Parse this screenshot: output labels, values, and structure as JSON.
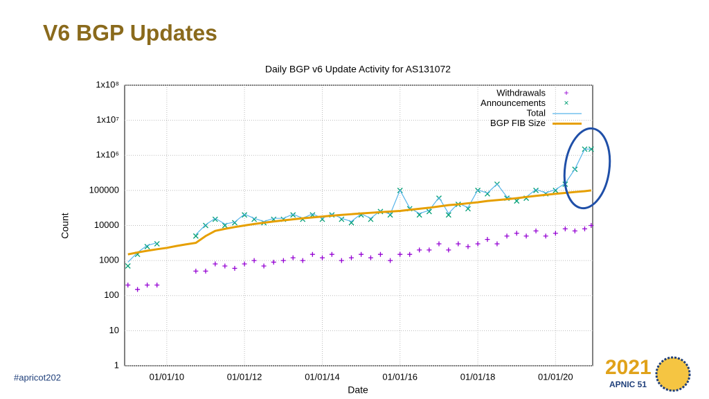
{
  "slide": {
    "title": "V6 BGP Updates",
    "footer_tag": "#apricot202",
    "logo_year": "2021",
    "logo_text": "APNIC 51"
  },
  "chart_data": {
    "type": "scatter",
    "title": "Daily BGP v6 Update Activity for AS131072",
    "x_label": "Date",
    "y_label": "Count",
    "log_scale_y": true,
    "grid": true,
    "legend_position": "top-right",
    "xlim": [
      "12/01/08",
      "12/15/20"
    ],
    "xticks": [
      "01/01/10",
      "01/01/12",
      "01/01/14",
      "01/01/16",
      "01/01/18",
      "01/01/20"
    ],
    "ylim": [
      1,
      100000000
    ],
    "yticks": [
      1,
      10,
      100,
      1000,
      10000,
      100000,
      {
        "value": 1000000,
        "label": "1x10⁶"
      },
      {
        "value": 10000000,
        "label": "1x10⁷"
      },
      {
        "value": 100000000,
        "label": "1x10⁸"
      }
    ],
    "x": [
      "01/01/09",
      "04/01/09",
      "07/01/09",
      "10/01/09",
      "01/01/10",
      "04/01/10",
      "07/01/10",
      "10/01/10",
      "01/01/11",
      "04/01/11",
      "07/01/11",
      "10/01/11",
      "01/01/12",
      "04/01/12",
      "07/01/12",
      "10/01/12",
      "01/01/13",
      "04/01/13",
      "07/01/13",
      "10/01/13",
      "01/01/14",
      "04/01/14",
      "07/01/14",
      "10/01/14",
      "01/01/15",
      "04/01/15",
      "07/01/15",
      "10/01/15",
      "01/01/16",
      "04/01/16",
      "07/01/16",
      "10/01/16",
      "01/01/17",
      "04/01/17",
      "07/01/17",
      "10/01/17",
      "01/01/18",
      "04/01/18",
      "07/01/18",
      "10/01/18",
      "01/01/19",
      "04/01/19",
      "07/01/19",
      "10/01/19",
      "01/01/20",
      "04/01/20",
      "07/01/20",
      "10/01/20",
      "12/01/20"
    ],
    "series": [
      {
        "name": "Withdrawals",
        "color": "#9400d3",
        "marker": "plus",
        "values": [
          200,
          150,
          200,
          200,
          null,
          null,
          null,
          500,
          500,
          800,
          700,
          600,
          800,
          1000,
          700,
          900,
          1000,
          1200,
          1000,
          1500,
          1200,
          1500,
          1000,
          1200,
          1500,
          1200,
          1500,
          1000,
          1500,
          1500,
          2000,
          2000,
          3000,
          2000,
          3000,
          2500,
          3000,
          4000,
          3000,
          5000,
          6000,
          5000,
          7000,
          5000,
          6000,
          8000,
          7000,
          8000,
          10000
        ]
      },
      {
        "name": "Announcements",
        "color": "#009e73",
        "marker": "cross",
        "values": [
          700,
          1500,
          2500,
          3000,
          null,
          null,
          null,
          5000,
          10000,
          15000,
          10000,
          12000,
          20000,
          15000,
          12000,
          15000,
          15000,
          20000,
          15000,
          20000,
          15000,
          20000,
          15000,
          12000,
          20000,
          15000,
          25000,
          20000,
          100000,
          30000,
          20000,
          25000,
          60000,
          20000,
          40000,
          30000,
          100000,
          80000,
          150000,
          60000,
          50000,
          60000,
          100000,
          80000,
          100000,
          150000,
          400000,
          1500000,
          1500000
        ]
      },
      {
        "name": "Total",
        "color": "#56b4e9",
        "marker": "line",
        "values": [
          900,
          1700,
          2700,
          3200,
          null,
          null,
          null,
          5500,
          10500,
          16000,
          11000,
          12500,
          21000,
          16000,
          13000,
          16000,
          16000,
          21000,
          16000,
          21500,
          16000,
          21500,
          16000,
          13000,
          21500,
          16000,
          26500,
          21000,
          101500,
          31500,
          22000,
          27000,
          63000,
          22000,
          43000,
          32500,
          103000,
          84000,
          153000,
          65000,
          56000,
          65000,
          107000,
          85000,
          106000,
          158000,
          407000,
          1508000,
          1510000
        ]
      },
      {
        "name": "BGP FIB Size",
        "color": "#e69f00",
        "marker": "line",
        "values": [
          1500,
          1700,
          1900,
          2100,
          2300,
          2600,
          2900,
          3200,
          5000,
          7000,
          8000,
          9000,
          10000,
          11000,
          12000,
          13000,
          14000,
          15000,
          16000,
          17000,
          18000,
          19000,
          20000,
          21000,
          22000,
          23000,
          24000,
          25000,
          26000,
          28000,
          30000,
          32000,
          35000,
          38000,
          40000,
          43000,
          46000,
          50000,
          53000,
          56000,
          60000,
          65000,
          70000,
          75000,
          80000,
          85000,
          90000,
          95000,
          100000
        ]
      }
    ]
  }
}
